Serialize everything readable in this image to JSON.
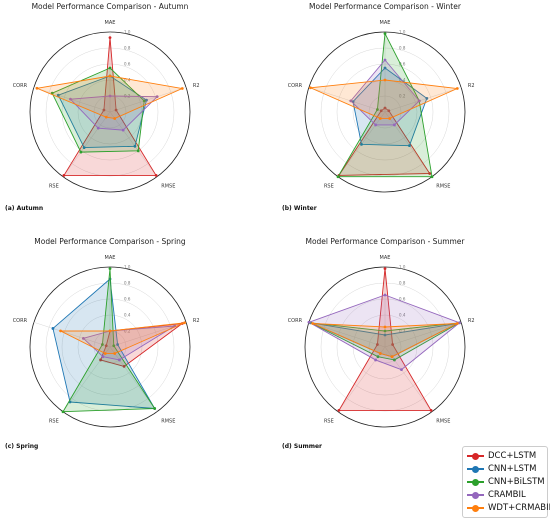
{
  "chart_data": {
    "type": "radar",
    "axes": [
      "MAE",
      "R2",
      "RMSE",
      "RSE",
      "CORR"
    ],
    "rticks": [
      "0.2",
      "0.4",
      "0.6",
      "0.8",
      "1.0"
    ],
    "rlim": [
      0,
      1
    ],
    "grid": true,
    "legend_position": "bottom-right",
    "series_colors": {
      "DCC+LSTM": "#d62728",
      "CNN+LSTM": "#1f77b4",
      "CNN+BiLSTM": "#2ca02c",
      "CRAMBIL": "#9467bd",
      "WDT+CRMABIL": "#ff7f0e"
    },
    "legend": [
      "DCC+LSTM",
      "CNN+LSTM",
      "CNN+BiLSTM",
      "CRAMBIL",
      "WDT+CRMABIL"
    ],
    "panels": [
      {
        "title": "Model Performance Comparison - Autumn",
        "caption": "(a) Autumn",
        "series": [
          {
            "name": "DCC+LSTM",
            "values": [
              0.93,
              0.08,
              0.98,
              0.98,
              0.08
            ]
          },
          {
            "name": "CNN+LSTM",
            "values": [
              0.45,
              0.48,
              0.53,
              0.55,
              0.68
            ]
          },
          {
            "name": "CNN+BiLSTM",
            "values": [
              0.55,
              0.45,
              0.6,
              0.62,
              0.76
            ]
          },
          {
            "name": "CRAMBIL",
            "values": [
              0.2,
              0.62,
              0.28,
              0.25,
              0.52
            ]
          },
          {
            "name": "WDT+CRMABIL",
            "values": [
              0.45,
              0.95,
              0.1,
              0.08,
              0.96
            ]
          }
        ]
      },
      {
        "title": "Model Performance Comparison - Winter",
        "caption": "(b) Winter",
        "series": [
          {
            "name": "DCC+LSTM",
            "values": [
              0.05,
              0.05,
              0.95,
              0.98,
              0.05
            ]
          },
          {
            "name": "CNN+LSTM",
            "values": [
              0.55,
              0.55,
              0.52,
              0.5,
              0.42
            ]
          },
          {
            "name": "CNN+BiLSTM",
            "values": [
              0.98,
              0.45,
              1.0,
              1.0,
              0.1
            ]
          },
          {
            "name": "CRAMBIL",
            "values": [
              0.65,
              0.45,
              0.2,
              0.2,
              0.45
            ]
          },
          {
            "name": "WDT+CRMABIL",
            "values": [
              0.4,
              0.95,
              0.1,
              0.1,
              0.98
            ]
          }
        ]
      },
      {
        "title": "Model Performance Comparison - Spring",
        "caption": "(c) Spring",
        "series": [
          {
            "name": "DCC+LSTM",
            "values": [
              0.2,
              0.95,
              0.3,
              0.2,
              0.05
            ]
          },
          {
            "name": "CNN+LSTM",
            "values": [
              0.85,
              0.1,
              0.95,
              0.85,
              0.75
            ]
          },
          {
            "name": "CNN+BiLSTM",
            "values": [
              0.98,
              0.05,
              0.95,
              1.0,
              0.1
            ]
          },
          {
            "name": "CRAMBIL",
            "values": [
              0.2,
              0.85,
              0.2,
              0.15,
              0.35
            ]
          },
          {
            "name": "WDT+CRMABIL",
            "values": [
              0.2,
              0.98,
              0.1,
              0.1,
              0.65
            ]
          }
        ]
      },
      {
        "title": "Model Performance Comparison - Summer",
        "caption": "(d) Summer",
        "series": [
          {
            "name": "DCC+LSTM",
            "values": [
              0.98,
              0.1,
              0.98,
              0.98,
              0.1
            ]
          },
          {
            "name": "CNN+LSTM",
            "values": [
              0.15,
              0.95,
              0.15,
              0.1,
              0.98
            ]
          },
          {
            "name": "CNN+BiLSTM",
            "values": [
              0.2,
              0.98,
              0.2,
              0.15,
              0.98
            ]
          },
          {
            "name": "CRAMBIL",
            "values": [
              0.65,
              0.98,
              0.35,
              0.2,
              1.0
            ]
          },
          {
            "name": "WDT+CRMABIL",
            "values": [
              0.25,
              0.95,
              0.15,
              0.1,
              0.95
            ]
          }
        ]
      }
    ]
  }
}
